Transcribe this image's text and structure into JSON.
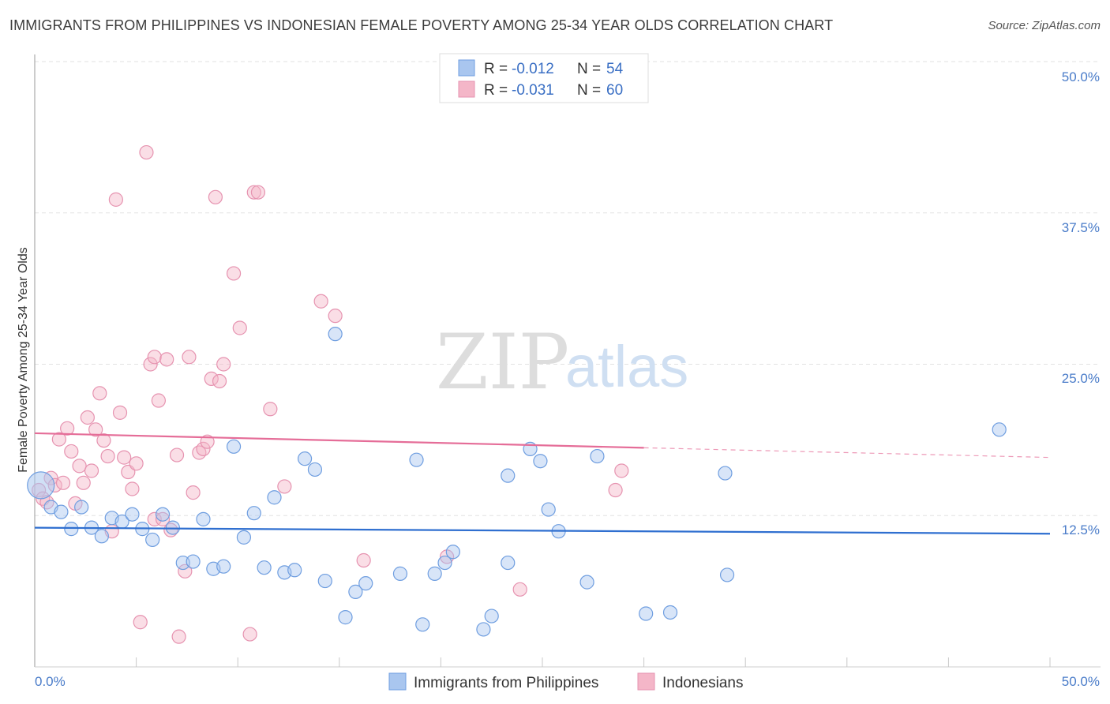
{
  "header": {
    "title": "IMMIGRANTS FROM PHILIPPINES VS INDONESIAN FEMALE POVERTY AMONG 25-34 YEAR OLDS CORRELATION CHART",
    "source": "Source: ZipAtlas.com"
  },
  "watermark": {
    "zip": "ZIP",
    "atlas": "atlas"
  },
  "stats_box": {
    "rows": [
      {
        "r_label": "R = ",
        "r_value": "-0.012",
        "n_label": "N = ",
        "n_value": "54",
        "color": "#a9c6ef"
      },
      {
        "r_label": "R = ",
        "r_value": "-0.031",
        "n_label": "N = ",
        "n_value": "60",
        "color": "#f4b6c8"
      }
    ]
  },
  "axes": {
    "ylabel": "Female Poverty Among 25-34 Year Olds",
    "x_left_label": "0.0%",
    "x_right_label": "50.0%",
    "y_tick_labels": [
      "12.5%",
      "25.0%",
      "37.5%",
      "50.0%"
    ]
  },
  "legend": {
    "items": [
      {
        "label": "Immigrants from Philippines",
        "color": "#a9c6ef"
      },
      {
        "label": "Indonesians",
        "color": "#f4b6c8"
      }
    ]
  },
  "colors": {
    "blue_point_fill": "#a9c6ef",
    "blue_point_stroke": "#6f9ee0",
    "blue_line": "#2f6fd0",
    "pink_point_fill": "#f4b6c8",
    "pink_point_stroke": "#e693b0",
    "pink_line": "#e56d98",
    "grid": "#e2e2e2"
  },
  "chart_data": {
    "type": "scatter",
    "title": "IMMIGRANTS FROM PHILIPPINES VS INDONESIAN FEMALE POVERTY AMONG 25-34 YEAR OLDS CORRELATION CHART",
    "xlabel": "",
    "ylabel": "Female Poverty Among 25-34 Year Olds",
    "xlim": [
      0,
      50
    ],
    "ylim": [
      0,
      50
    ],
    "y_ticks": [
      12.5,
      25.0,
      37.5,
      50.0
    ],
    "grid": true,
    "legend_position": "bottom",
    "series": [
      {
        "name": "Immigrants from Philippines",
        "r": -0.012,
        "n": 54,
        "trend": {
          "x": [
            0,
            50
          ],
          "y": [
            11.5,
            11.0
          ]
        },
        "points": [
          {
            "x": 0.3,
            "y": 15.0,
            "big": true
          },
          {
            "x": 0.8,
            "y": 13.2
          },
          {
            "x": 1.3,
            "y": 12.8
          },
          {
            "x": 1.8,
            "y": 11.4
          },
          {
            "x": 2.3,
            "y": 13.2
          },
          {
            "x": 2.8,
            "y": 11.5
          },
          {
            "x": 3.3,
            "y": 10.8
          },
          {
            "x": 3.8,
            "y": 12.3
          },
          {
            "x": 4.3,
            "y": 12.0
          },
          {
            "x": 4.8,
            "y": 12.6
          },
          {
            "x": 5.3,
            "y": 11.4
          },
          {
            "x": 5.8,
            "y": 10.5
          },
          {
            "x": 6.3,
            "y": 12.6
          },
          {
            "x": 6.8,
            "y": 11.5
          },
          {
            "x": 7.3,
            "y": 8.6
          },
          {
            "x": 7.8,
            "y": 8.7
          },
          {
            "x": 8.3,
            "y": 12.2
          },
          {
            "x": 8.8,
            "y": 8.1
          },
          {
            "x": 9.3,
            "y": 8.3
          },
          {
            "x": 9.8,
            "y": 18.2
          },
          {
            "x": 10.3,
            "y": 10.7
          },
          {
            "x": 10.8,
            "y": 12.7
          },
          {
            "x": 11.3,
            "y": 8.2
          },
          {
            "x": 11.8,
            "y": 14.0
          },
          {
            "x": 12.3,
            "y": 7.8
          },
          {
            "x": 12.8,
            "y": 8.0
          },
          {
            "x": 13.3,
            "y": 17.2
          },
          {
            "x": 13.8,
            "y": 16.3
          },
          {
            "x": 14.3,
            "y": 7.1
          },
          {
            "x": 14.8,
            "y": 27.5
          },
          {
            "x": 15.3,
            "y": 4.1
          },
          {
            "x": 15.8,
            "y": 6.2
          },
          {
            "x": 16.3,
            "y": 6.9
          },
          {
            "x": 18.0,
            "y": 7.7
          },
          {
            "x": 18.8,
            "y": 17.1
          },
          {
            "x": 19.1,
            "y": 3.5
          },
          {
            "x": 19.7,
            "y": 7.7
          },
          {
            "x": 20.2,
            "y": 8.6
          },
          {
            "x": 20.6,
            "y": 9.5
          },
          {
            "x": 22.1,
            "y": 3.1
          },
          {
            "x": 22.5,
            "y": 4.2
          },
          {
            "x": 23.3,
            "y": 15.8
          },
          {
            "x": 23.3,
            "y": 8.6
          },
          {
            "x": 24.4,
            "y": 18.0
          },
          {
            "x": 24.9,
            "y": 17.0
          },
          {
            "x": 25.3,
            "y": 13.0
          },
          {
            "x": 25.8,
            "y": 11.2
          },
          {
            "x": 27.2,
            "y": 7.0
          },
          {
            "x": 27.7,
            "y": 17.4
          },
          {
            "x": 30.1,
            "y": 4.4
          },
          {
            "x": 31.3,
            "y": 4.5
          },
          {
            "x": 34.0,
            "y": 16.0
          },
          {
            "x": 34.1,
            "y": 7.6
          },
          {
            "x": 47.5,
            "y": 19.6
          }
        ]
      },
      {
        "name": "Indonesians",
        "r": -0.031,
        "n": 60,
        "trend": {
          "x": [
            0,
            30
          ],
          "y": [
            19.3,
            18.1
          ]
        },
        "trend_dashed": {
          "x": [
            30,
            50
          ],
          "y": [
            18.1,
            17.3
          ]
        },
        "points": [
          {
            "x": 0.2,
            "y": 14.6
          },
          {
            "x": 0.4,
            "y": 13.9
          },
          {
            "x": 0.6,
            "y": 13.6
          },
          {
            "x": 0.8,
            "y": 15.6
          },
          {
            "x": 1.0,
            "y": 15.0
          },
          {
            "x": 1.2,
            "y": 18.8
          },
          {
            "x": 1.4,
            "y": 15.2
          },
          {
            "x": 1.6,
            "y": 19.7
          },
          {
            "x": 1.8,
            "y": 17.8
          },
          {
            "x": 2.0,
            "y": 13.5
          },
          {
            "x": 2.2,
            "y": 16.6
          },
          {
            "x": 2.4,
            "y": 15.2
          },
          {
            "x": 2.6,
            "y": 20.6
          },
          {
            "x": 2.8,
            "y": 16.2
          },
          {
            "x": 3.0,
            "y": 19.6
          },
          {
            "x": 3.2,
            "y": 22.6
          },
          {
            "x": 3.4,
            "y": 18.7
          },
          {
            "x": 3.6,
            "y": 17.4
          },
          {
            "x": 3.8,
            "y": 11.2
          },
          {
            "x": 4.0,
            "y": 38.6
          },
          {
            "x": 4.2,
            "y": 21.0
          },
          {
            "x": 4.4,
            "y": 17.3
          },
          {
            "x": 4.6,
            "y": 16.1
          },
          {
            "x": 4.8,
            "y": 14.7
          },
          {
            "x": 5.0,
            "y": 16.8
          },
          {
            "x": 5.2,
            "y": 3.7
          },
          {
            "x": 5.5,
            "y": 42.5
          },
          {
            "x": 5.7,
            "y": 25.0
          },
          {
            "x": 5.9,
            "y": 25.6
          },
          {
            "x": 5.9,
            "y": 12.2
          },
          {
            "x": 6.1,
            "y": 22.0
          },
          {
            "x": 6.3,
            "y": 12.2
          },
          {
            "x": 6.5,
            "y": 25.4
          },
          {
            "x": 6.7,
            "y": 11.3
          },
          {
            "x": 7.0,
            "y": 17.5
          },
          {
            "x": 7.1,
            "y": 2.5
          },
          {
            "x": 7.4,
            "y": 7.9
          },
          {
            "x": 7.6,
            "y": 25.6
          },
          {
            "x": 7.8,
            "y": 14.4
          },
          {
            "x": 8.1,
            "y": 17.7
          },
          {
            "x": 8.3,
            "y": 18.0
          },
          {
            "x": 8.5,
            "y": 18.6
          },
          {
            "x": 8.7,
            "y": 23.8
          },
          {
            "x": 8.9,
            "y": 38.8
          },
          {
            "x": 9.1,
            "y": 23.6
          },
          {
            "x": 9.3,
            "y": 25.0
          },
          {
            "x": 9.8,
            "y": 32.5
          },
          {
            "x": 10.1,
            "y": 28.0
          },
          {
            "x": 10.6,
            "y": 2.7
          },
          {
            "x": 10.8,
            "y": 39.2
          },
          {
            "x": 11.0,
            "y": 39.2
          },
          {
            "x": 11.6,
            "y": 21.3
          },
          {
            "x": 12.3,
            "y": 14.9
          },
          {
            "x": 14.1,
            "y": 30.2
          },
          {
            "x": 14.8,
            "y": 29.0
          },
          {
            "x": 16.2,
            "y": 8.8
          },
          {
            "x": 20.3,
            "y": 9.1
          },
          {
            "x": 23.9,
            "y": 6.4
          },
          {
            "x": 28.6,
            "y": 14.6
          },
          {
            "x": 28.9,
            "y": 16.2
          }
        ]
      }
    ]
  }
}
